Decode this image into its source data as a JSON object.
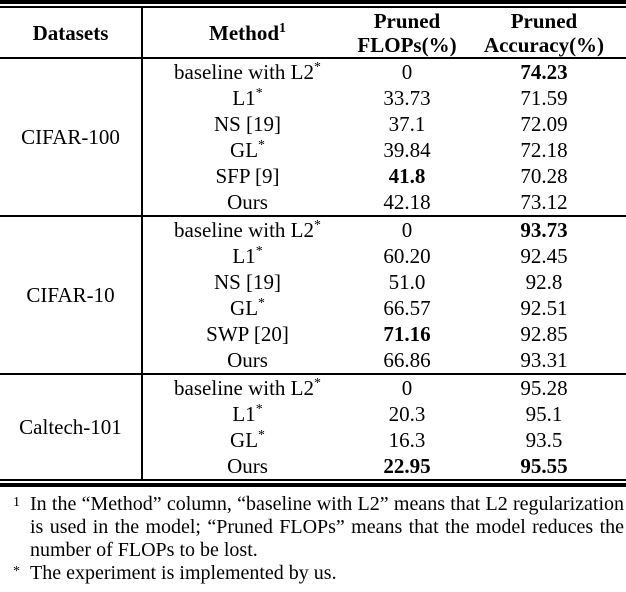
{
  "table": {
    "header": {
      "datasets": "Datasets",
      "method": "Method",
      "method_sup": "1",
      "flops_line1": "Pruned",
      "flops_line2": "FLOPs(%)",
      "acc_line1": "Pruned",
      "acc_line2": "Accuracy(%)"
    },
    "groups": [
      {
        "dataset": "CIFAR-100",
        "rows": [
          {
            "method": "baseline with L2",
            "sup": "*",
            "flops": "0",
            "acc": "74.23"
          },
          {
            "method": "L1",
            "sup": "*",
            "flops": "33.73",
            "acc": "71.59"
          },
          {
            "method": "NS [19]",
            "sup": "",
            "flops": "37.1",
            "acc": "72.09"
          },
          {
            "method": "GL",
            "sup": "*",
            "flops": "39.84",
            "acc": "72.18"
          },
          {
            "method": "SFP [9]",
            "sup": "",
            "flops": "41.8",
            "acc": "70.28"
          },
          {
            "method": "Ours",
            "sup": "",
            "flops": "42.18",
            "acc": "73.12"
          }
        ]
      },
      {
        "dataset": "CIFAR-10",
        "rows": [
          {
            "method": "baseline with L2",
            "sup": "*",
            "flops": "0",
            "acc": "93.73"
          },
          {
            "method": "L1",
            "sup": "*",
            "flops": "60.20",
            "acc": "92.45"
          },
          {
            "method": "NS [19]",
            "sup": "",
            "flops": "51.0",
            "acc": "92.8"
          },
          {
            "method": "GL",
            "sup": "*",
            "flops": "66.57",
            "acc": "92.51"
          },
          {
            "method": "SWP [20]",
            "sup": "",
            "flops": "71.16",
            "acc": "92.85"
          },
          {
            "method": "Ours",
            "sup": "",
            "flops": "66.86",
            "acc": "93.31"
          }
        ]
      },
      {
        "dataset": "Caltech-101",
        "rows": [
          {
            "method": "baseline with L2",
            "sup": "*",
            "flops": "0",
            "acc": "95.28"
          },
          {
            "method": "L1",
            "sup": "*",
            "flops": "20.3",
            "acc": "95.1"
          },
          {
            "method": "GL",
            "sup": "*",
            "flops": "16.3",
            "acc": "93.5"
          },
          {
            "method": "Ours",
            "sup": "",
            "flops": "22.95",
            "acc": "95.55"
          }
        ]
      }
    ]
  },
  "footnotes": [
    {
      "marker": "1",
      "text": "In the “Method” column, “baseline with L2” means that L2 regularization is used in the model; “Pruned FLOPs” means that the model reduces the number of FLOPs to be lost."
    },
    {
      "marker": "*",
      "text": "The experiment is implemented by us."
    }
  ]
}
